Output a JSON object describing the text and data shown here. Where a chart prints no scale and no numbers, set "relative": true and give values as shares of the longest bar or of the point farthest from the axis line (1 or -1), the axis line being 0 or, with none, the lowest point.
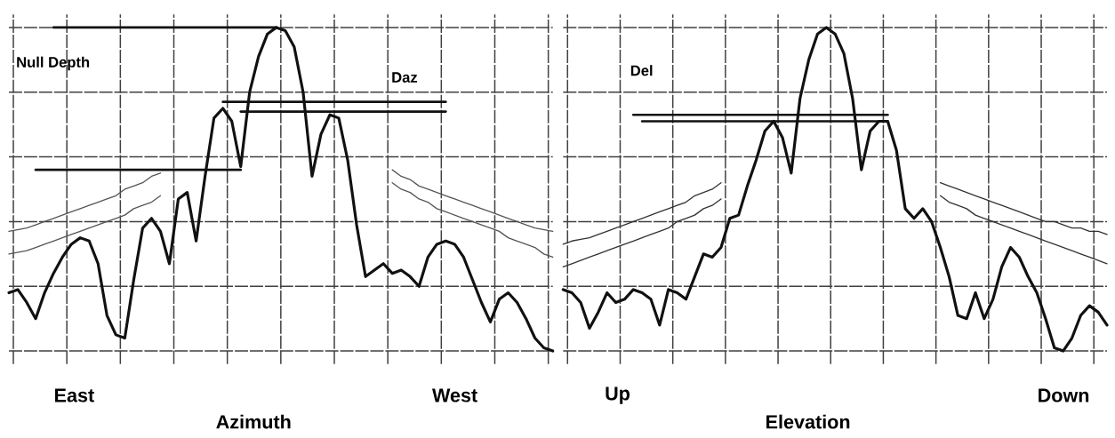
{
  "chart_data": [
    {
      "type": "line",
      "relative": true,
      "grid": true,
      "xlabel": "Azimuth",
      "annotations": [
        "Null Depth",
        "Daz",
        "East",
        "West"
      ],
      "categories": [
        null,
        null,
        null,
        null,
        null,
        null,
        null,
        null,
        null,
        null,
        null,
        null,
        null,
        null,
        null,
        null,
        null,
        null,
        null,
        null,
        null,
        null,
        null,
        null,
        null,
        null,
        null,
        null,
        null,
        null,
        null,
        null,
        null,
        null,
        null,
        null,
        null,
        null,
        null,
        null,
        null,
        null,
        null,
        null,
        null,
        null,
        null,
        null,
        null,
        null,
        null,
        null,
        null,
        null,
        null,
        null,
        null,
        null,
        null,
        null,
        null,
        null
      ],
      "series": [
        {
          "color": "#111111",
          "values": [
            0.18,
            0.19,
            0.15,
            0.1,
            0.18,
            0.24,
            0.29,
            0.33,
            0.35,
            0.34,
            0.27,
            0.11,
            0.05,
            0.04,
            0.22,
            0.38,
            0.41,
            0.37,
            0.27,
            0.47,
            0.49,
            0.34,
            0.54,
            0.72,
            0.75,
            0.71,
            0.57,
            0.8,
            0.91,
            0.98,
            1,
            0.99,
            0.94,
            0.8,
            0.54,
            0.67,
            0.73,
            0.72,
            0.59,
            0.39,
            0.23,
            0.25,
            0.27,
            0.24,
            0.25,
            0.23,
            0.2,
            0.29,
            0.33,
            0.34,
            0.33,
            0.29,
            0.22,
            0.15,
            0.09,
            0.16,
            0.18,
            0.15,
            0.1,
            0.04,
            0.01,
            0
          ]
        },
        {
          "color": "#555555",
          "values": [
            0.37,
            0.375,
            0.38,
            0.39,
            0.4,
            0.41,
            0.42,
            0.43,
            0.44,
            0.45,
            0.46,
            0.47,
            0.48,
            0.5,
            0.51,
            0.52,
            0.54,
            0.55,
            null,
            null,
            null,
            null,
            null,
            null,
            null,
            null,
            null,
            null,
            null,
            null,
            null,
            null,
            null,
            null,
            null,
            null,
            null,
            null,
            null,
            null,
            null,
            null,
            null,
            0.56,
            0.54,
            0.53,
            0.51,
            0.5,
            0.49,
            0.48,
            0.47,
            0.46,
            0.45,
            0.44,
            0.43,
            0.42,
            0.41,
            0.4,
            0.39,
            0.38,
            0.375,
            0.37
          ]
        },
        {
          "color": "#555555",
          "values": [
            0.3,
            0.305,
            0.31,
            0.32,
            0.33,
            0.34,
            0.35,
            0.36,
            0.37,
            0.38,
            0.39,
            0.4,
            0.41,
            0.42,
            0.44,
            0.45,
            0.46,
            0.48,
            null,
            null,
            null,
            null,
            null,
            null,
            null,
            null,
            null,
            null,
            null,
            null,
            null,
            null,
            null,
            null,
            null,
            null,
            null,
            null,
            null,
            null,
            null,
            null,
            null,
            0.52,
            0.5,
            0.49,
            0.47,
            0.46,
            0.44,
            0.43,
            0.42,
            0.41,
            0.4,
            0.39,
            0.38,
            0.37,
            0.35,
            0.34,
            0.33,
            0.32,
            0.3,
            0.29
          ]
        },
        {
          "color": "#111111",
          "values": [
            null,
            null,
            null,
            null,
            null,
            1,
            1,
            1,
            1,
            1,
            1,
            1,
            1,
            1,
            1,
            1,
            1,
            1,
            1,
            1,
            1,
            1,
            1,
            1,
            1,
            1,
            1,
            1,
            1,
            1,
            1,
            null,
            null,
            null,
            null,
            null,
            null,
            null,
            null,
            null,
            null,
            null,
            null,
            null,
            null,
            null,
            null,
            null,
            null,
            null,
            null,
            null,
            null,
            null,
            null,
            null,
            null,
            null,
            null,
            null,
            null,
            null
          ]
        },
        {
          "color": "#111111",
          "values": [
            null,
            null,
            null,
            0.56,
            0.56,
            0.56,
            0.56,
            0.56,
            0.56,
            0.56,
            0.56,
            0.56,
            0.56,
            0.56,
            0.56,
            0.56,
            0.56,
            0.56,
            0.56,
            0.56,
            0.56,
            0.56,
            0.56,
            0.56,
            0.56,
            0.56,
            0.56,
            null,
            null,
            null,
            null,
            null,
            null,
            null,
            null,
            null,
            null,
            null,
            null,
            null,
            null,
            null,
            null,
            null,
            null,
            null,
            null,
            null,
            null,
            null,
            null,
            null,
            null,
            null,
            null,
            null,
            null,
            null,
            null,
            null,
            null,
            null
          ]
        },
        {
          "color": "#111111",
          "values": [
            null,
            null,
            null,
            null,
            null,
            null,
            null,
            null,
            null,
            null,
            null,
            null,
            null,
            null,
            null,
            null,
            null,
            null,
            null,
            null,
            null,
            null,
            null,
            null,
            0.77,
            0.77,
            0.77,
            0.77,
            0.77,
            0.77,
            0.77,
            0.77,
            0.77,
            0.77,
            0.77,
            0.77,
            0.77,
            0.77,
            0.77,
            0.77,
            0.77,
            0.77,
            0.77,
            0.77,
            0.77,
            0.77,
            0.77,
            0.77,
            0.77,
            0.77,
            null,
            null,
            null,
            null,
            null,
            null,
            null,
            null,
            null,
            null,
            null,
            null
          ]
        },
        {
          "color": "#111111",
          "values": [
            null,
            null,
            null,
            null,
            null,
            null,
            null,
            null,
            null,
            null,
            null,
            null,
            null,
            null,
            null,
            null,
            null,
            null,
            null,
            null,
            null,
            null,
            null,
            null,
            null,
            null,
            0.74,
            0.74,
            0.74,
            0.74,
            0.74,
            0.74,
            0.74,
            0.74,
            0.74,
            0.74,
            0.74,
            0.74,
            0.74,
            0.74,
            0.74,
            0.74,
            0.74,
            0.74,
            0.74,
            0.74,
            0.74,
            0.74,
            0.74,
            0.74,
            null,
            null,
            null,
            null,
            null,
            null,
            null,
            null,
            null,
            null,
            null,
            null
          ]
        }
      ]
    },
    {
      "type": "line",
      "relative": true,
      "grid": true,
      "xlabel": "Elevation",
      "annotations": [
        "Del",
        "Up",
        "Down"
      ],
      "categories": [
        null,
        null,
        null,
        null,
        null,
        null,
        null,
        null,
        null,
        null,
        null,
        null,
        null,
        null,
        null,
        null,
        null,
        null,
        null,
        null,
        null,
        null,
        null,
        null,
        null,
        null,
        null,
        null,
        null,
        null,
        null,
        null,
        null,
        null,
        null,
        null,
        null,
        null,
        null,
        null,
        null,
        null,
        null,
        null,
        null,
        null,
        null,
        null,
        null,
        null,
        null,
        null,
        null,
        null,
        null,
        null,
        null,
        null,
        null,
        null,
        null,
        null,
        null
      ],
      "series": [
        {
          "color": "#111111",
          "values": [
            0.19,
            0.18,
            0.15,
            0.07,
            0.12,
            0.18,
            0.15,
            0.16,
            0.19,
            0.18,
            0.16,
            0.08,
            0.19,
            0.18,
            0.16,
            0.23,
            0.3,
            0.29,
            0.32,
            0.41,
            0.42,
            0.51,
            0.59,
            0.68,
            0.71,
            0.66,
            0.55,
            0.78,
            0.9,
            0.98,
            1,
            0.98,
            0.92,
            0.78,
            0.56,
            0.68,
            0.71,
            0.71,
            0.62,
            0.44,
            0.41,
            0.44,
            0.4,
            0.32,
            0.23,
            0.11,
            0.1,
            0.18,
            0.1,
            0.16,
            0.26,
            0.32,
            0.29,
            0.23,
            0.18,
            0.1,
            0.01,
            0,
            0.04,
            0.11,
            0.14,
            0.12,
            0.08
          ]
        },
        {
          "color": "#333333",
          "values": [
            0.33,
            0.34,
            0.345,
            0.35,
            0.36,
            0.37,
            0.38,
            0.39,
            0.4,
            0.41,
            0.42,
            0.43,
            0.44,
            0.45,
            0.46,
            0.48,
            0.49,
            0.5,
            0.52,
            null,
            null,
            null,
            null,
            null,
            null,
            null,
            null,
            null,
            null,
            null,
            null,
            null,
            null,
            null,
            null,
            null,
            null,
            null,
            null,
            null,
            null,
            null,
            null,
            0.52,
            0.51,
            0.5,
            0.49,
            0.48,
            0.47,
            0.46,
            0.45,
            0.44,
            0.43,
            0.42,
            0.41,
            0.4,
            0.4,
            0.39,
            0.38,
            0.38,
            0.37,
            0.37,
            0.36
          ]
        },
        {
          "color": "#333333",
          "values": [
            0.26,
            0.27,
            0.28,
            0.29,
            0.3,
            0.31,
            0.32,
            0.33,
            0.34,
            0.35,
            0.36,
            0.37,
            0.38,
            0.4,
            0.41,
            0.42,
            0.44,
            0.45,
            0.47,
            null,
            null,
            null,
            null,
            null,
            null,
            null,
            null,
            null,
            null,
            null,
            null,
            null,
            null,
            null,
            null,
            null,
            null,
            null,
            null,
            null,
            null,
            null,
            null,
            0.48,
            0.46,
            0.45,
            0.44,
            0.42,
            0.41,
            0.4,
            0.39,
            0.38,
            0.37,
            0.36,
            0.35,
            0.34,
            0.33,
            0.32,
            0.31,
            0.3,
            0.29,
            0.28,
            0.27
          ]
        },
        {
          "color": "#111111",
          "values": [
            null,
            null,
            null,
            null,
            null,
            null,
            null,
            null,
            0.73,
            0.73,
            0.73,
            0.73,
            0.73,
            0.73,
            0.73,
            0.73,
            0.73,
            0.73,
            0.73,
            0.73,
            0.73,
            0.73,
            0.73,
            0.73,
            0.73,
            0.73,
            0.73,
            0.73,
            0.73,
            0.73,
            0.73,
            0.73,
            0.73,
            0.73,
            0.73,
            0.73,
            0.73,
            0.73,
            null,
            null,
            null,
            null,
            null,
            null,
            null,
            null,
            null,
            null,
            null,
            null,
            null,
            null,
            null,
            null,
            null,
            null,
            null,
            null,
            null,
            null,
            null,
            null,
            null
          ]
        },
        {
          "color": "#111111",
          "values": [
            null,
            null,
            null,
            null,
            null,
            null,
            null,
            null,
            null,
            0.71,
            0.71,
            0.71,
            0.71,
            0.71,
            0.71,
            0.71,
            0.71,
            0.71,
            0.71,
            0.71,
            0.71,
            0.71,
            0.71,
            0.71,
            0.71,
            0.71,
            0.71,
            0.71,
            0.71,
            0.71,
            0.71,
            0.71,
            0.71,
            0.71,
            0.71,
            0.71,
            0.71,
            0.71,
            null,
            null,
            null,
            null,
            null,
            null,
            null,
            null,
            null,
            null,
            null,
            null,
            null,
            null,
            null,
            null,
            null,
            null,
            null,
            null,
            null,
            null,
            null,
            null,
            null
          ]
        }
      ]
    }
  ]
}
